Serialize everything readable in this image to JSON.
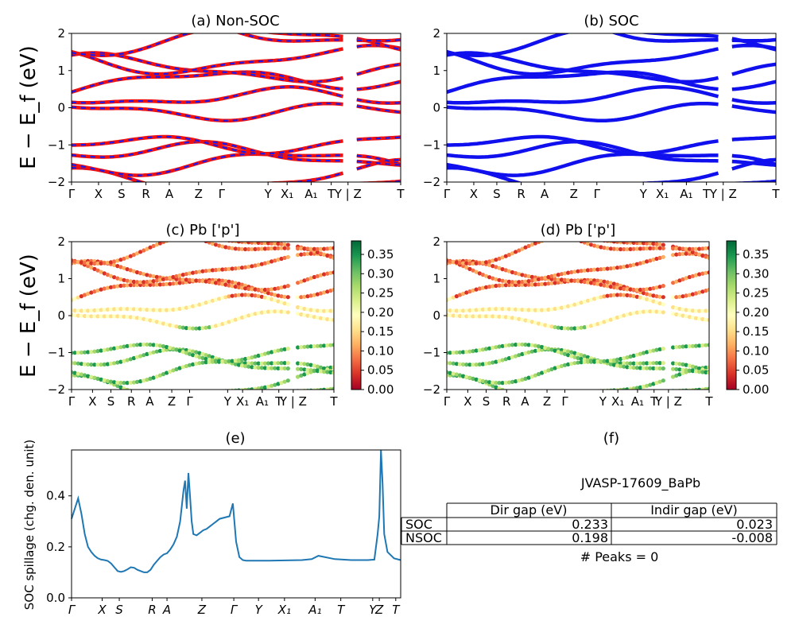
{
  "charts": [
    {
      "id": "a",
      "title": "(a) Non-SOC",
      "ylabel": "E − E_f (eV)",
      "ylim": [
        -2,
        2
      ],
      "yticks": [
        "2",
        "1",
        "0",
        "−1",
        "−2"
      ],
      "xtick_labels": [
        "Γ",
        "X",
        "S",
        "R",
        "A",
        "Z",
        "Γ",
        "Y",
        "X₁",
        "A₁",
        "T",
        "Y | Z",
        "T"
      ],
      "colors": {
        "bands": "#ee1111",
        "overlay": "#1a1aee"
      }
    },
    {
      "id": "b",
      "title": "(b) SOC",
      "ylim": [
        -2,
        2
      ],
      "yticks": [
        "2",
        "1",
        "0",
        "−1",
        "−2"
      ],
      "xtick_labels": [
        "Γ",
        "X",
        "S",
        "R",
        "A",
        "Z",
        "Γ",
        "Y",
        "X₁",
        "A₁",
        "T",
        "Y | Z",
        "T"
      ],
      "colors": {
        "bands": "#1010ee"
      }
    },
    {
      "id": "c",
      "title": "(c)  Pb ['p']",
      "ylabel": "E − E_f (eV)",
      "ylim": [
        -2,
        2
      ],
      "yticks": [
        "2",
        "1",
        "0",
        "−1",
        "−2"
      ],
      "xtick_labels": [
        "Γ",
        "X",
        "S",
        "R",
        "A",
        "Z",
        "Γ",
        "Y",
        "X₁",
        "A₁",
        "T",
        "Y | Z",
        "T"
      ],
      "colorbar_ticks": [
        "0.35",
        "0.30",
        "0.25",
        "0.20",
        "0.15",
        "0.10",
        "0.05",
        "0.00"
      ],
      "colormap": "RdYlGn"
    },
    {
      "id": "d",
      "title": "(d) Pb ['p']",
      "ylim": [
        -2,
        2
      ],
      "yticks": [
        "2",
        "1",
        "0",
        "−1",
        "−2"
      ],
      "xtick_labels": [
        "Γ",
        "X",
        "S",
        "R",
        "A",
        "Z",
        "Γ",
        "Y",
        "X₁",
        "A₁",
        "T",
        "Y | Z",
        "T"
      ],
      "colorbar_ticks": [
        "0.35",
        "0.30",
        "0.25",
        "0.20",
        "0.15",
        "0.10",
        "0.05",
        "0.00"
      ],
      "colormap": "RdYlGn"
    }
  ],
  "chart_data": {
    "type": "line",
    "title": "(e)",
    "ylabel": "SOC spillage (chg. den. unit)",
    "ylim": [
      0.0,
      0.58
    ],
    "yticks": [
      "0.0",
      "0.2",
      "0.4"
    ],
    "xtick_labels": [
      "Γ",
      "X",
      "S",
      "R",
      "A",
      "Z",
      "Γ",
      "Y",
      "X₁",
      "A₁",
      "T",
      "Y",
      "Z",
      "T"
    ],
    "color": "#1f77b4",
    "x": [
      0,
      0.01,
      0.02,
      0.03,
      0.04,
      0.05,
      0.06,
      0.07,
      0.08,
      0.09,
      0.1,
      0.11,
      0.12,
      0.13,
      0.14,
      0.15,
      0.16,
      0.17,
      0.18,
      0.19,
      0.2,
      0.21,
      0.22,
      0.23,
      0.24,
      0.25,
      0.26,
      0.27,
      0.28,
      0.29,
      0.3,
      0.31,
      0.32,
      0.33,
      0.34,
      0.345,
      0.35,
      0.355,
      0.36,
      0.365,
      0.37,
      0.38,
      0.39,
      0.4,
      0.41,
      0.42,
      0.43,
      0.44,
      0.45,
      0.48,
      0.49,
      0.5,
      0.51,
      0.52,
      0.53,
      0.54,
      0.55,
      0.6,
      0.65,
      0.7,
      0.73,
      0.75,
      0.8,
      0.85,
      0.9,
      0.92,
      0.93,
      0.935,
      0.94,
      0.945,
      0.95,
      0.96,
      0.98,
      1.0
    ],
    "series": [
      {
        "values": [
          0.31,
          0.35,
          0.39,
          0.33,
          0.25,
          0.2,
          0.18,
          0.165,
          0.155,
          0.15,
          0.148,
          0.145,
          0.135,
          0.12,
          0.105,
          0.102,
          0.105,
          0.112,
          0.12,
          0.118,
          0.11,
          0.105,
          0.1,
          0.1,
          0.11,
          0.13,
          0.145,
          0.16,
          0.17,
          0.175,
          0.19,
          0.21,
          0.24,
          0.3,
          0.42,
          0.46,
          0.35,
          0.49,
          0.4,
          0.3,
          0.25,
          0.245,
          0.255,
          0.265,
          0.27,
          0.28,
          0.29,
          0.3,
          0.31,
          0.32,
          0.37,
          0.22,
          0.16,
          0.148,
          0.146,
          0.146,
          0.146,
          0.146,
          0.147,
          0.148,
          0.152,
          0.165,
          0.152,
          0.148,
          0.148,
          0.15,
          0.25,
          0.32,
          0.58,
          0.45,
          0.25,
          0.18,
          0.155,
          0.148
        ]
      }
    ]
  },
  "panel_f": {
    "title": "(f)",
    "material": "JVASP-17609_BaPb",
    "col_headers": [
      "Dir gap (eV)",
      "Indir gap (eV)"
    ],
    "rows": [
      {
        "label": "SOC",
        "dir": "0.233",
        "indir": "0.023"
      },
      {
        "label": "NSOC",
        "dir": "0.198",
        "indir": "-0.008"
      }
    ],
    "peaks": "# Peaks = 0"
  }
}
